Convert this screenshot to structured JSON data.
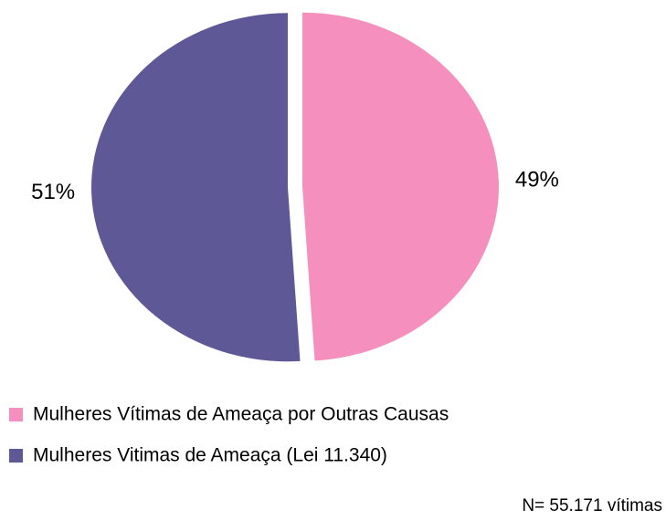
{
  "chart_data": {
    "type": "pie",
    "categories": [
      "Mulheres Vítimas de Ameaça por Outras Causas",
      "Mulheres Vitimas de Ameaça (Lei 11.340)"
    ],
    "values": [
      49,
      51
    ],
    "value_labels": [
      "49%",
      "51%"
    ],
    "colors": [
      "#f590be",
      "#5f5897"
    ],
    "annotation": "N= 55.171 vítimas"
  }
}
